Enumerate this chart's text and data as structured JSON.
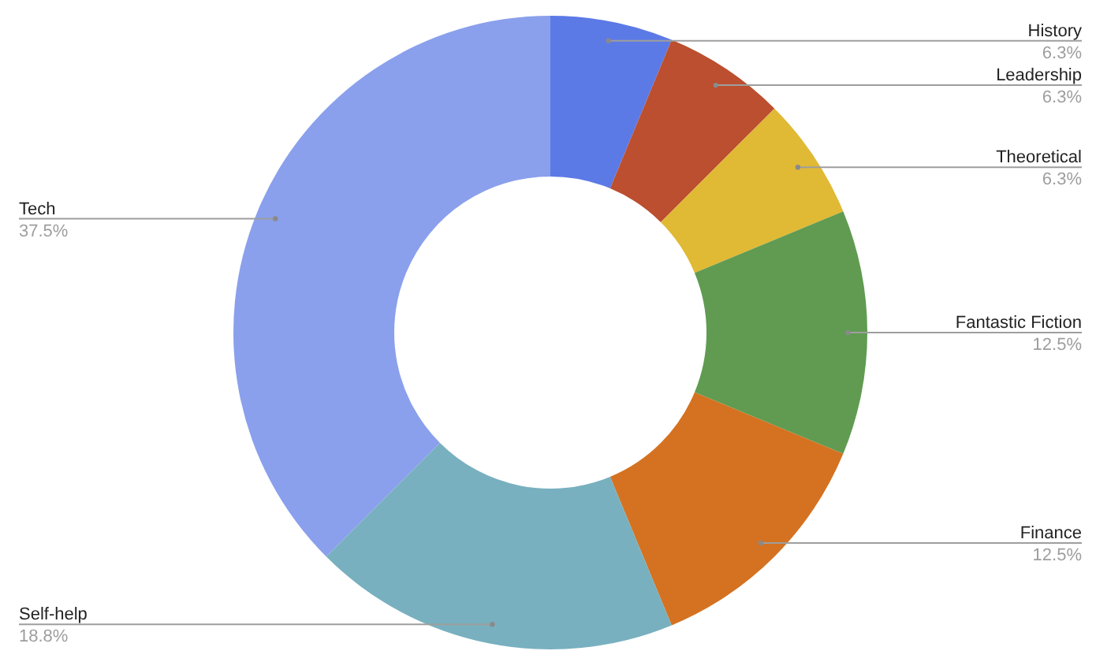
{
  "chart_data": {
    "type": "donut",
    "categories": [
      "History",
      "Leadership",
      "Theoretical",
      "Fantastic Fiction",
      "Finance",
      "Self-help",
      "Tech"
    ],
    "values": [
      6.25,
      6.25,
      6.25,
      12.5,
      12.5,
      18.75,
      37.5
    ],
    "value_labels": [
      "6.3%",
      "6.3%",
      "6.3%",
      "12.5%",
      "12.5%",
      "18.8%",
      "37.5%"
    ],
    "colors": [
      "#5c7ae6",
      "#bb4f2f",
      "#e0b935",
      "#609b51",
      "#d47221",
      "#78b0bf",
      "#8aa0ec"
    ]
  }
}
